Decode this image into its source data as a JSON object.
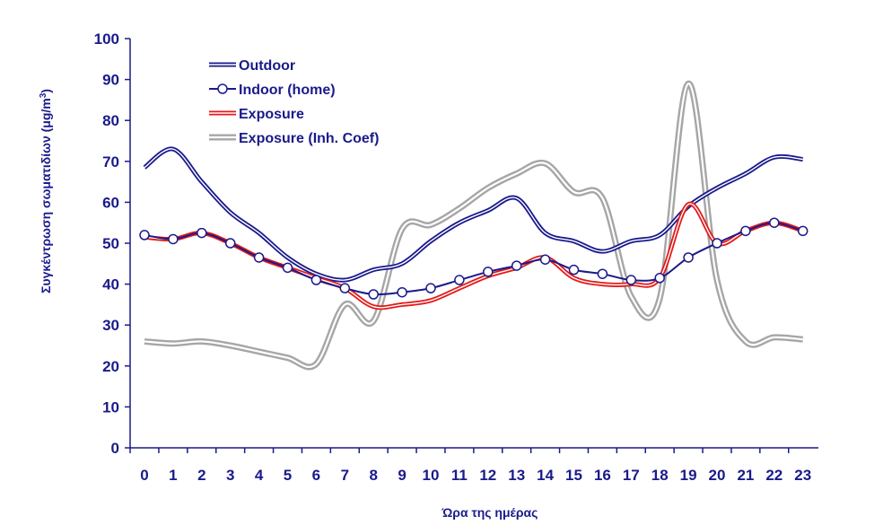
{
  "chart_data": {
    "type": "line",
    "title": "",
    "xlabel": "Ώρα της ημέρας",
    "ylabel": "Συγκέντρωση σωματιδίων (μg/m³)",
    "ylim": [
      0,
      100
    ],
    "yticks": [
      0,
      10,
      20,
      30,
      40,
      50,
      60,
      70,
      80,
      90,
      100
    ],
    "x": [
      0,
      1,
      2,
      3,
      4,
      5,
      6,
      7,
      8,
      9,
      10,
      11,
      12,
      13,
      14,
      15,
      16,
      17,
      18,
      19,
      20,
      21,
      22,
      23
    ],
    "grid": false,
    "legend_position": "top-left",
    "series": [
      {
        "name": "Outdoor",
        "color": "#1a1a8c",
        "style": "double-line",
        "values": [
          68.5,
          73,
          65,
          57.5,
          52.5,
          46.5,
          42.5,
          41,
          43.5,
          45,
          50.5,
          55,
          58,
          61,
          52.5,
          50.5,
          48,
          50.5,
          52,
          59,
          63.5,
          67,
          71,
          70.5
        ]
      },
      {
        "name": "Indoor (home)",
        "color": "#1a1a8c",
        "style": "line-circle-markers",
        "values": [
          52,
          51,
          52.5,
          50,
          46.5,
          44,
          41,
          39,
          37.5,
          38,
          39,
          41,
          43,
          44.5,
          46,
          43.5,
          42.5,
          41,
          41.5,
          46.5,
          50,
          53,
          55,
          53
        ]
      },
      {
        "name": "Exposure",
        "color": "#e41a1a",
        "style": "double-line",
        "values": [
          51.5,
          51,
          52.5,
          50,
          46.5,
          44,
          41.5,
          39,
          34.5,
          35,
          36,
          39,
          42,
          44,
          46.5,
          41.5,
          40,
          40,
          41.5,
          59.5,
          50,
          53,
          55,
          53
        ]
      },
      {
        "name": "Exposure (Inh. Coef)",
        "color": "#a6a6a6",
        "style": "double-line-thick",
        "values": [
          26,
          25.5,
          26,
          25,
          23.5,
          22,
          20.5,
          35,
          31,
          53.5,
          54.5,
          58.5,
          63.5,
          67,
          69.5,
          62.5,
          61,
          37,
          36.5,
          89,
          41,
          26,
          27,
          26.5
        ]
      }
    ]
  }
}
